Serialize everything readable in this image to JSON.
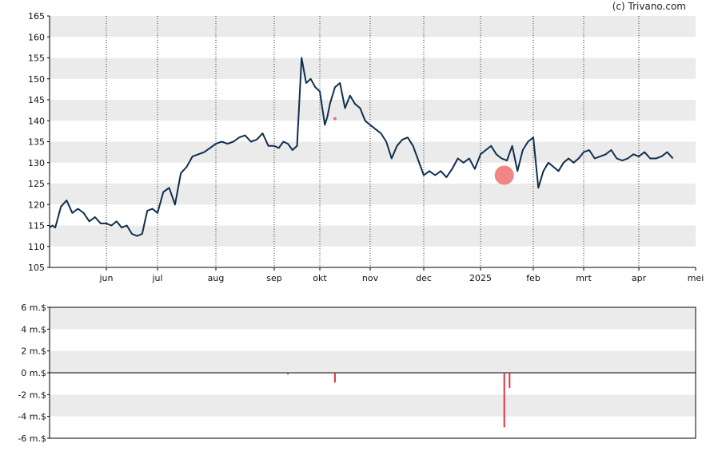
{
  "credit": "(c) Trivano.com",
  "colors": {
    "price_line": "#0f2f4f",
    "band": "#ebebeb",
    "insider": "#e0333f",
    "marker": "#f07070"
  },
  "chart_data": [
    {
      "type": "line",
      "title": "",
      "xlabel": "",
      "ylabel": "",
      "ylim": [
        105,
        165
      ],
      "yticks": [
        "165",
        "160",
        "155",
        "150",
        "145",
        "140",
        "135",
        "130",
        "125",
        "120",
        "115",
        "110",
        "105"
      ],
      "xticks": [
        "jun",
        "jul",
        "aug",
        "sep",
        "okt",
        "nov",
        "dec",
        "2025",
        "feb",
        "mrt",
        "apr",
        "mei"
      ],
      "grid": "vertical dotted lines at month starts, alternating horizontal bands",
      "series": [
        {
          "x_month_index": [
            0,
            0.05,
            0.1,
            0.15,
            0.2,
            0.3,
            0.4,
            0.5,
            0.6,
            0.7,
            0.8,
            0.9,
            1.0,
            1.1,
            1.2,
            1.3,
            1.4,
            1.5,
            1.6,
            1.7,
            1.8,
            1.9,
            2.0,
            2.1,
            2.2,
            2.3,
            2.4,
            2.5,
            2.6,
            2.7,
            2.8,
            2.9,
            3.0,
            3.1,
            3.2,
            3.3,
            3.4,
            3.5,
            3.6,
            3.7,
            3.8,
            3.9,
            4.0,
            4.1,
            4.2,
            4.3,
            4.4,
            4.5,
            4.6,
            4.7,
            4.8,
            4.9,
            5.0,
            5.05,
            5.1,
            5.15,
            5.2,
            5.3,
            5.4,
            5.5,
            5.6,
            5.7,
            5.8,
            5.9,
            6.0,
            6.1,
            6.2,
            6.3,
            6.4,
            6.5,
            6.6,
            6.7,
            6.8,
            6.9,
            7.0,
            7.1,
            7.2,
            7.3,
            7.4,
            7.5,
            7.6,
            7.7,
            7.8,
            7.9,
            8.0,
            8.1,
            8.2,
            8.3,
            8.4,
            8.5,
            8.6,
            8.7,
            8.8,
            8.9,
            9.0,
            9.1,
            9.2,
            9.3,
            9.4,
            9.5,
            9.6,
            9.7,
            9.8,
            9.9,
            10.0,
            10.1,
            10.2,
            10.3,
            10.4,
            10.5,
            10.6,
            10.7,
            10.8,
            10.9,
            11.0,
            11.1,
            11.2,
            11.3,
            11.4,
            11.5,
            11.6,
            11.7,
            11.8,
            11.9,
            12.0
          ],
          "values": [
            114.5,
            115,
            114.5,
            117,
            119.5,
            121,
            118,
            119,
            118,
            116,
            117,
            115.5,
            115.5,
            115,
            116,
            114.5,
            115,
            113,
            112.5,
            113,
            118.5,
            119,
            118,
            123,
            124,
            120,
            127.5,
            129,
            131.5,
            132,
            132.5,
            133.5,
            134.5,
            135,
            134.5,
            135,
            136,
            136.5,
            135,
            135.5,
            137,
            134,
            134,
            133.5,
            135,
            134.5,
            133,
            134,
            155,
            149,
            150,
            148,
            147,
            143,
            139,
            141,
            144,
            148,
            149,
            143,
            146,
            144,
            143,
            140,
            139,
            138,
            137,
            135,
            131,
            134,
            135.5,
            136,
            134,
            130.5,
            127,
            128,
            127,
            128,
            126.5,
            128.5,
            131,
            130,
            131,
            128.5,
            132,
            133,
            134,
            132,
            131,
            130.5,
            134,
            128,
            133,
            135,
            136,
            124,
            128,
            130,
            129,
            128,
            130,
            131,
            130,
            131,
            132.5,
            133,
            131,
            131.5,
            132,
            133,
            131,
            130.5,
            131,
            132,
            131.5,
            132.5,
            131,
            131,
            131.5,
            132.5,
            131
          ]
        }
      ]
    },
    {
      "type": "bar",
      "title": "",
      "ylim": [
        -6,
        6
      ],
      "yticks": [
        "6 m.$",
        "4 m.$",
        "2 m.$",
        "0 m.$",
        "-2 m.$",
        "-4 m.$",
        "-6 m.$"
      ],
      "series": [
        {
          "x_month_index": [
            5.3,
            8.45,
            8.55
          ],
          "values": [
            -0.9,
            -5.0,
            -1.4
          ]
        }
      ]
    }
  ]
}
